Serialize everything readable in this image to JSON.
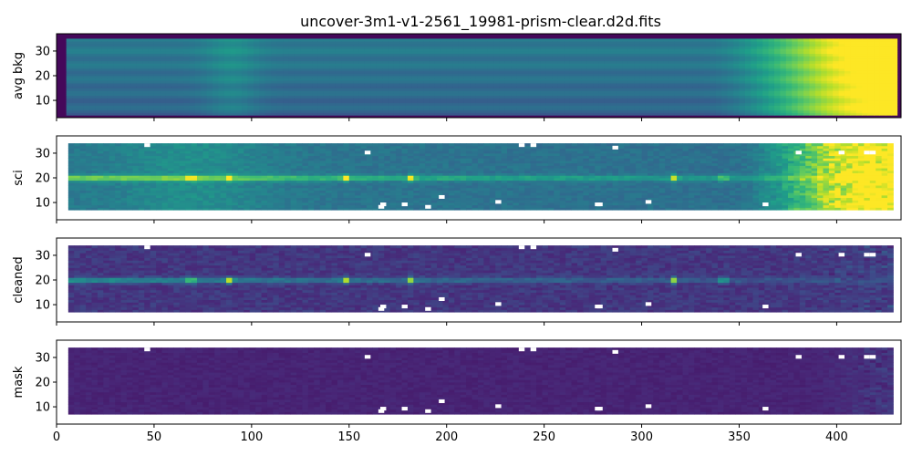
{
  "title": "uncover-3m1-v1-2561_19981-prism-clear.d2d.fits",
  "chart_data": {
    "type": "heatmap",
    "colormap": "viridis",
    "xlim": [
      0,
      433
    ],
    "ylim": [
      3,
      37
    ],
    "xticks": [
      0,
      50,
      100,
      150,
      200,
      250,
      300,
      350,
      400
    ],
    "yticks": [
      10,
      20,
      30
    ],
    "trace_row": 20,
    "emission_lines_x": [
      69,
      89,
      148,
      182,
      317,
      342
    ],
    "masked_pixels": [
      [
        45,
        33
      ],
      [
        158,
        30
      ],
      [
        165,
        8
      ],
      [
        166,
        9
      ],
      [
        177,
        9
      ],
      [
        189,
        8
      ],
      [
        196,
        12
      ],
      [
        225,
        10
      ],
      [
        237,
        33
      ],
      [
        243,
        33
      ],
      [
        276,
        9
      ],
      [
        277,
        9
      ],
      [
        285,
        32
      ],
      [
        302,
        10
      ],
      [
        362,
        9
      ],
      [
        379,
        30
      ],
      [
        401,
        30
      ],
      [
        414,
        30
      ],
      [
        417,
        30
      ]
    ],
    "panels": [
      {
        "ylabel": "avg bkg",
        "data_x": [
          5,
          430
        ],
        "data_y": [
          4,
          35
        ]
      },
      {
        "ylabel": "sci",
        "data_x": [
          6,
          428
        ],
        "data_y": [
          7,
          34
        ]
      },
      {
        "ylabel": "cleaned",
        "data_x": [
          6,
          428
        ],
        "data_y": [
          7,
          34
        ]
      },
      {
        "ylabel": "mask",
        "data_x": [
          6,
          428
        ],
        "data_y": [
          7,
          34
        ]
      }
    ]
  }
}
